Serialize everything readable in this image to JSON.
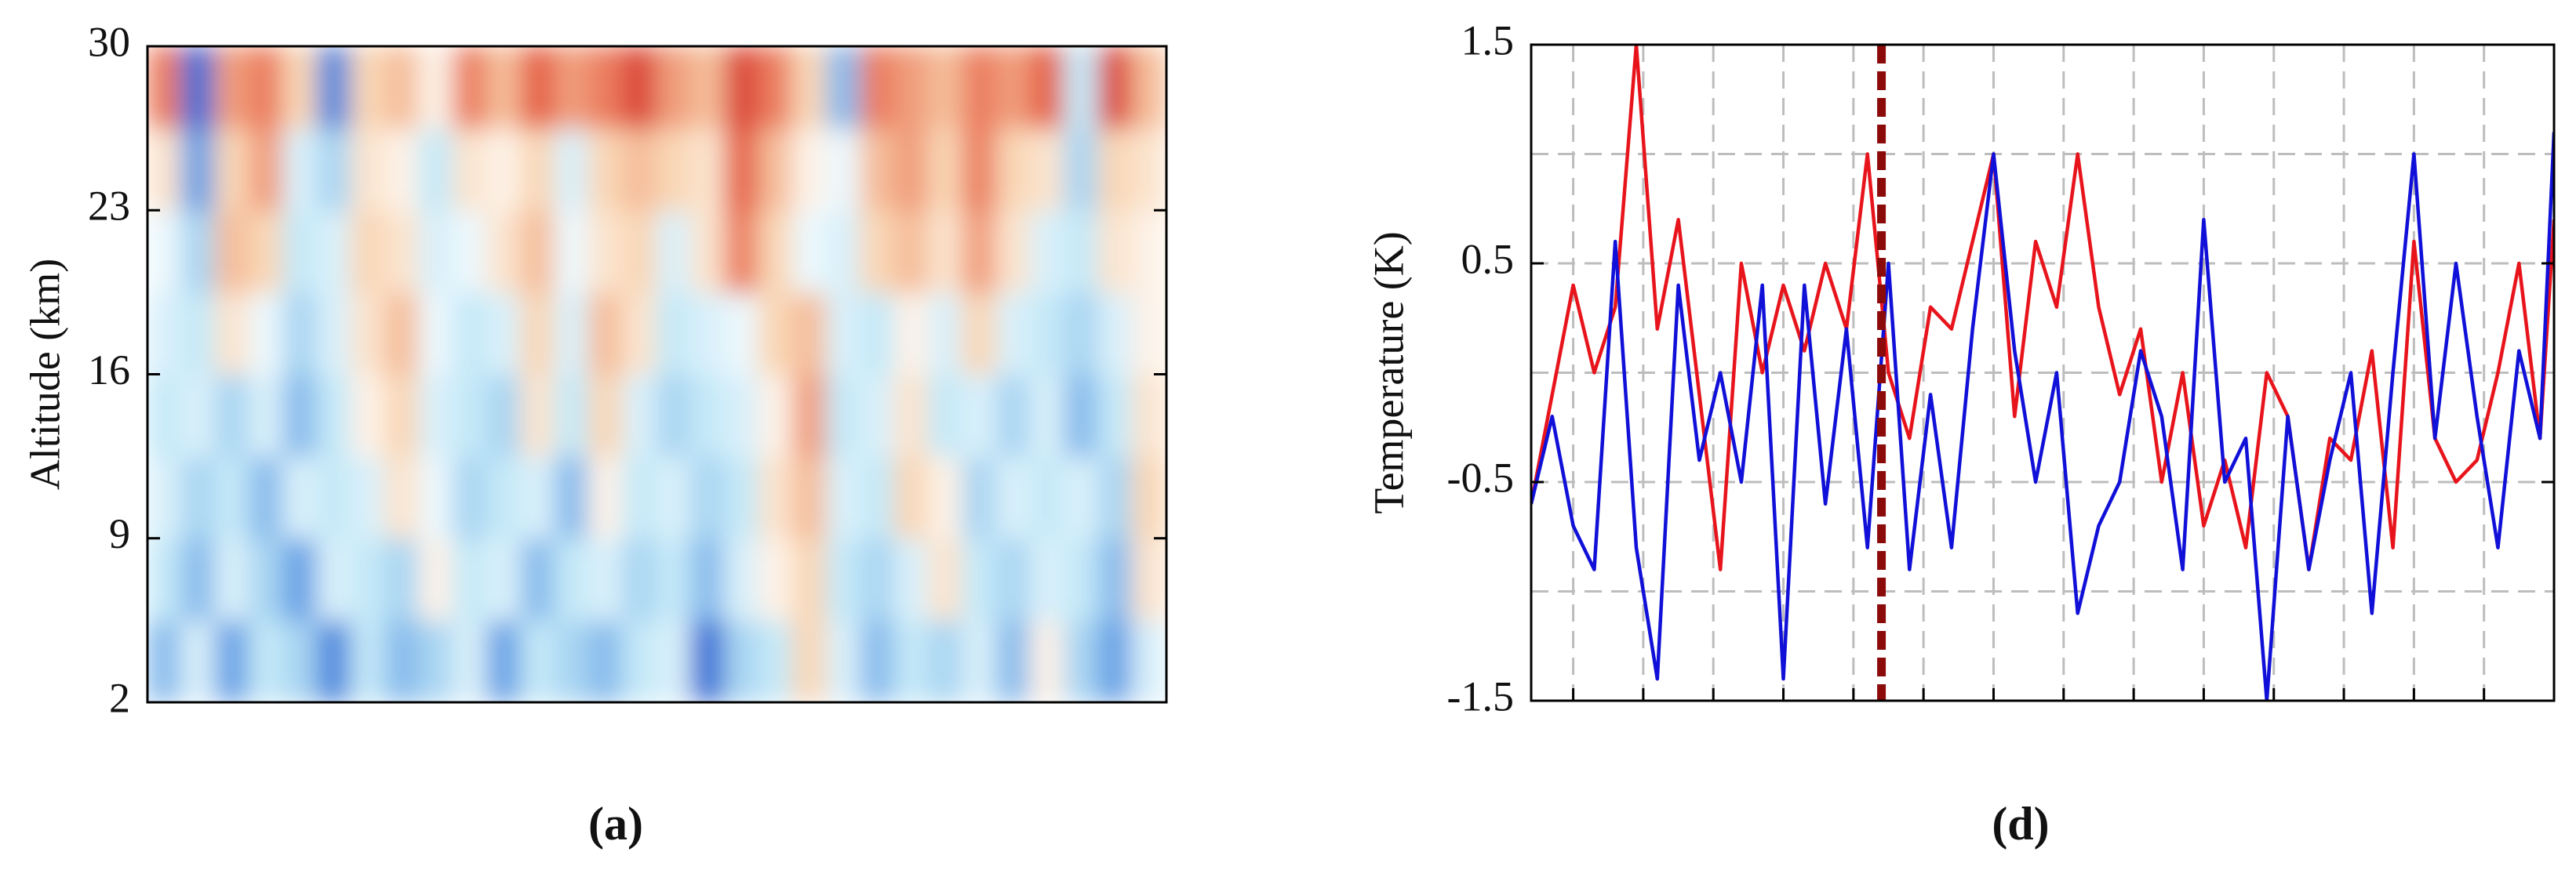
{
  "chart_data": [
    {
      "type": "heatmap",
      "panel_label": "(a)",
      "ylabel": "Altitude (km)",
      "ylim": [
        2,
        30
      ],
      "yticks": [
        2,
        9,
        16,
        23,
        30
      ],
      "zlim": [
        -1,
        1
      ],
      "colormap": [
        "#0a3cc4",
        "#4f8fe0",
        "#bfe6f7",
        "#ffffff",
        "#f8d2ae",
        "#e8684a",
        "#c8141c"
      ],
      "z": [
        [
          -0.5,
          -0.2,
          -0.6,
          -0.3,
          -0.4,
          -0.7,
          -0.3,
          -0.5,
          -0.4,
          -0.2,
          -0.6,
          -0.3,
          -0.4,
          -0.5,
          -0.3,
          -0.2,
          -0.8,
          -0.4,
          -0.3,
          0.3,
          -0.2,
          -0.5,
          -0.3,
          -0.4,
          -0.2,
          -0.5,
          0.1,
          -0.4,
          -0.6,
          -0.2
        ],
        [
          -0.3,
          -0.5,
          -0.2,
          -0.4,
          -0.6,
          -0.2,
          -0.3,
          -0.4,
          0.1,
          -0.3,
          -0.2,
          -0.5,
          -0.3,
          -0.2,
          -0.4,
          -0.3,
          -0.5,
          -0.2,
          0.1,
          0.3,
          -0.3,
          -0.4,
          -0.2,
          0.2,
          -0.3,
          -0.4,
          -0.2,
          -0.3,
          -0.5,
          0.2
        ],
        [
          -0.2,
          -0.4,
          -0.3,
          -0.5,
          -0.2,
          -0.3,
          -0.2,
          0.2,
          -0.1,
          -0.4,
          -0.3,
          -0.2,
          -0.5,
          0.1,
          -0.3,
          -0.2,
          -0.4,
          -0.3,
          0.2,
          0.4,
          -0.2,
          -0.3,
          0.3,
          0.1,
          -0.4,
          -0.2,
          -0.3,
          -0.2,
          -0.4,
          0.3
        ],
        [
          -0.3,
          -0.2,
          -0.4,
          -0.2,
          -0.5,
          -0.3,
          0.1,
          0.3,
          -0.2,
          -0.3,
          -0.4,
          0.2,
          -0.3,
          0.3,
          -0.2,
          -0.4,
          -0.3,
          -0.2,
          0.1,
          0.5,
          -0.3,
          -0.2,
          0.2,
          -0.3,
          -0.2,
          -0.4,
          -0.2,
          -0.5,
          -0.3,
          0.2
        ],
        [
          -0.2,
          -0.3,
          0.2,
          -0.1,
          -0.4,
          -0.2,
          0.2,
          0.4,
          -0.1,
          -0.3,
          -0.2,
          0.3,
          -0.2,
          0.4,
          0.2,
          -0.3,
          -0.2,
          -0.1,
          0.3,
          0.4,
          -0.2,
          -0.3,
          0.1,
          -0.2,
          0.3,
          -0.2,
          -0.3,
          -0.4,
          -0.2,
          0.1
        ],
        [
          -0.1,
          -0.4,
          0.4,
          0.3,
          -0.3,
          -0.2,
          0.3,
          0.2,
          -0.2,
          -0.1,
          0.2,
          0.4,
          -0.1,
          0.2,
          0.3,
          -0.2,
          0.2,
          0.6,
          0.3,
          -0.1,
          -0.2,
          0.3,
          0.4,
          0.2,
          0.5,
          0.2,
          -0.2,
          -0.3,
          0.2,
          0.1
        ],
        [
          0.2,
          -0.6,
          0.3,
          0.5,
          -0.2,
          -0.4,
          0.2,
          0.1,
          -0.3,
          0.2,
          0.1,
          0.3,
          -0.2,
          0.3,
          0.4,
          0.3,
          0.2,
          0.7,
          0.4,
          0.1,
          -0.1,
          0.4,
          0.5,
          0.3,
          0.6,
          0.3,
          0.2,
          -0.4,
          0.3,
          0.2
        ],
        [
          0.6,
          -0.8,
          0.5,
          0.6,
          0.3,
          -0.7,
          0.3,
          0.4,
          0.1,
          0.6,
          0.4,
          0.7,
          0.5,
          0.6,
          0.8,
          0.5,
          0.4,
          0.8,
          0.6,
          0.3,
          -0.5,
          0.6,
          0.5,
          0.4,
          0.6,
          0.5,
          0.7,
          -0.3,
          0.8,
          0.4
        ]
      ]
    },
    {
      "type": "line",
      "panel_label": "(d)",
      "ylabel": "Temperature (K)",
      "ylim": [
        -1.5,
        1.5
      ],
      "yticks": [
        -1.5,
        -0.5,
        0.5,
        1.5
      ],
      "ygrid": [
        -1,
        0,
        1
      ],
      "xlim": [
        0,
        146
      ],
      "xgrid": [
        6,
        16,
        26,
        36,
        46,
        56,
        66,
        76,
        86,
        96,
        106,
        116,
        126,
        136
      ],
      "marker_x": 50,
      "marker_color": "#8b0a0a",
      "x": [
        0,
        3,
        6,
        9,
        12,
        15,
        18,
        21,
        24,
        27,
        30,
        33,
        36,
        39,
        42,
        45,
        48,
        51,
        54,
        57,
        60,
        63,
        66,
        69,
        72,
        75,
        78,
        81,
        84,
        87,
        90,
        93,
        96,
        99,
        102,
        105,
        108,
        111,
        114,
        117,
        120,
        123,
        126,
        129,
        132,
        135,
        138,
        141,
        144,
        146
      ],
      "series": [
        {
          "name": "red",
          "color": "#e8141c",
          "values": [
            -0.6,
            -0.1,
            0.4,
            0.0,
            0.3,
            1.5,
            0.2,
            0.7,
            -0.1,
            -0.9,
            0.5,
            0.0,
            0.4,
            0.1,
            0.5,
            0.2,
            1.0,
            0.0,
            -0.3,
            0.3,
            0.2,
            0.6,
            1.0,
            -0.2,
            0.6,
            0.3,
            1.0,
            0.3,
            -0.1,
            0.2,
            -0.5,
            0.0,
            -0.7,
            -0.4,
            -0.8,
            0.0,
            -0.2,
            -0.9,
            -0.3,
            -0.4,
            0.1,
            -0.8,
            0.6,
            -0.3,
            -0.5,
            -0.4,
            0.0,
            0.5,
            -0.3,
            0.7
          ]
        },
        {
          "name": "blue",
          "color": "#1010d8",
          "values": [
            -0.6,
            -0.2,
            -0.7,
            -0.9,
            0.6,
            -0.8,
            -1.4,
            0.4,
            -0.4,
            0.0,
            -0.5,
            0.4,
            -1.4,
            0.4,
            -0.6,
            0.2,
            -0.8,
            0.5,
            -0.9,
            -0.1,
            -0.8,
            0.2,
            1.0,
            0.1,
            -0.5,
            0.0,
            -1.1,
            -0.7,
            -0.5,
            0.1,
            -0.2,
            -0.9,
            0.7,
            -0.5,
            -0.3,
            -1.5,
            -0.2,
            -0.9,
            -0.4,
            0.0,
            -1.1,
            0.0,
            1.0,
            -0.3,
            0.5,
            -0.2,
            -0.8,
            0.1,
            -0.3,
            1.1
          ]
        }
      ]
    }
  ]
}
